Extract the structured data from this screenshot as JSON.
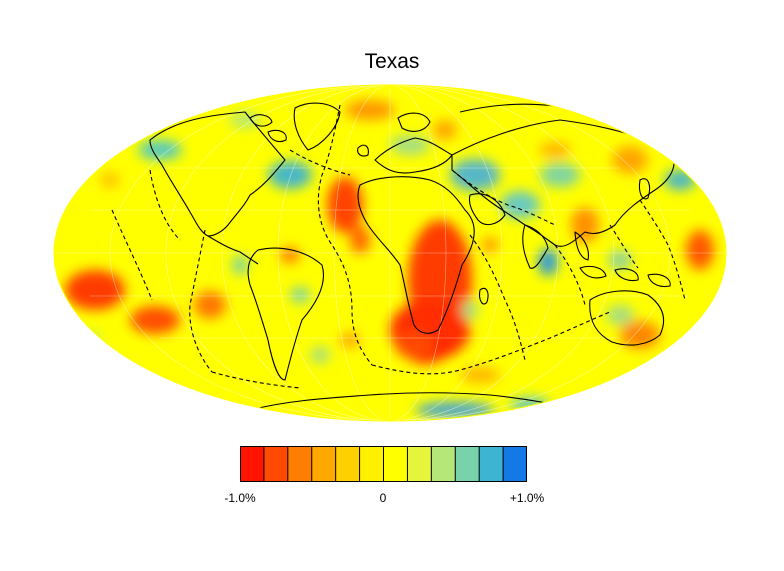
{
  "title": "Texas",
  "colorbar": {
    "min_label": "-1.0%",
    "mid_label": "0",
    "max_label": "+1.0%",
    "range": [
      -1.0,
      1.0
    ],
    "steps": 12,
    "colors": [
      "#ff1400",
      "#ff4a00",
      "#ff7d00",
      "#ffa800",
      "#ffd000",
      "#fff000",
      "#ffff00",
      "#e6f53c",
      "#b4e678",
      "#78d2aa",
      "#3cb4d2",
      "#1478e6"
    ]
  },
  "map": {
    "projection": "mollweide",
    "background_color": "#ffff00",
    "coastline_color": "#000000",
    "plate_boundary_style": "dashed"
  }
}
